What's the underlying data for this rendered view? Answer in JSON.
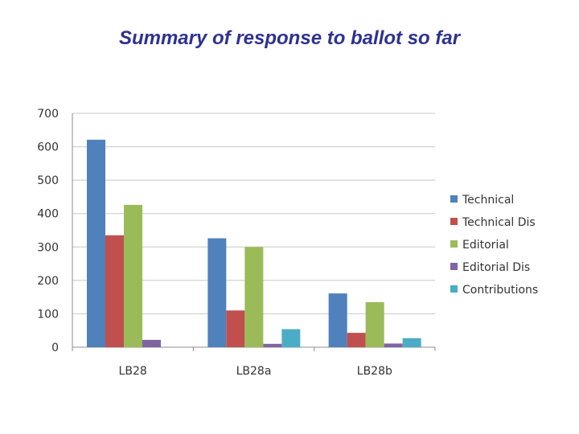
{
  "slide": {
    "title": "Summary of response to ballot so far"
  },
  "chart_data": {
    "type": "bar",
    "title": "",
    "xlabel": "",
    "ylabel": "",
    "categories": [
      "LB28",
      "LB28a",
      "LB28b"
    ],
    "ylim": [
      0,
      700
    ],
    "yticks": [
      0,
      100,
      200,
      300,
      400,
      500,
      600,
      700
    ],
    "grid": true,
    "legend_position": "right",
    "series": [
      {
        "name": "Technical",
        "color": "#4f81bd",
        "values": [
          621,
          326,
          161
        ]
      },
      {
        "name": "Technical Dis",
        "color": "#c0504d",
        "values": [
          335,
          110,
          43
        ]
      },
      {
        "name": "Editorial",
        "color": "#9bbb59",
        "values": [
          426,
          300,
          135
        ]
      },
      {
        "name": "Editorial Dis",
        "color": "#8064a2",
        "values": [
          22,
          10,
          11
        ]
      },
      {
        "name": "Contributions",
        "color": "#4bacc6",
        "values": [
          0,
          54,
          27
        ]
      }
    ]
  }
}
